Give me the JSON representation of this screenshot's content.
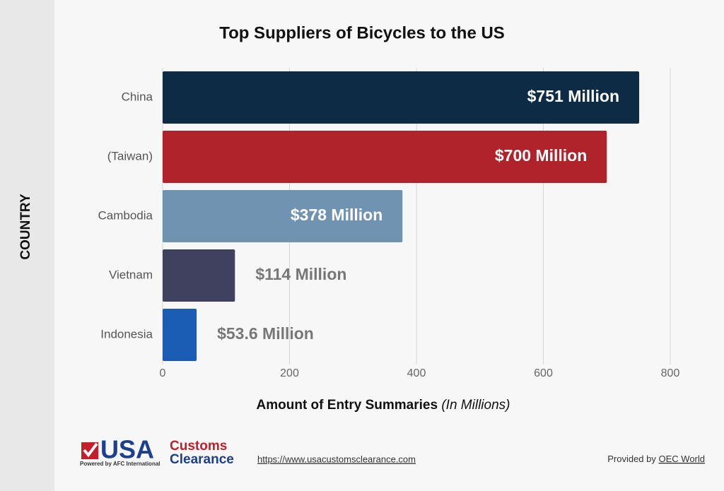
{
  "chart_data": {
    "type": "bar",
    "orientation": "horizontal",
    "title": "Top Suppliers of Bicycles to the US",
    "x_label": "Amount of Entry Summaries",
    "x_label_note": "(In Millions)",
    "y_label": "COUNTRY",
    "categories": [
      "China",
      "(Taiwan)",
      "Cambodia",
      "Vietnam",
      "Indonesia"
    ],
    "values": [
      751,
      700,
      378,
      114,
      53.6
    ],
    "value_labels": [
      "$751 Million",
      "$700 Million",
      "$378 Million",
      "$114 Million",
      "$53.6 Million"
    ],
    "colors": [
      "#0d2b45",
      "#b0232a",
      "#6f93b0",
      "#40405f",
      "#1b5cb4"
    ],
    "xlim": [
      0,
      800
    ],
    "xticks": [
      0,
      200,
      400,
      600,
      800
    ],
    "grid": true
  },
  "footer": {
    "logo_main": "USA",
    "logo_top": "Customs",
    "logo_bottom": "Clearance",
    "logo_tagline": "Powered by AFC International",
    "url": "https://www.usacustomsclearance.com",
    "credit_prefix": "Provided by",
    "credit_link": "OEC World"
  }
}
